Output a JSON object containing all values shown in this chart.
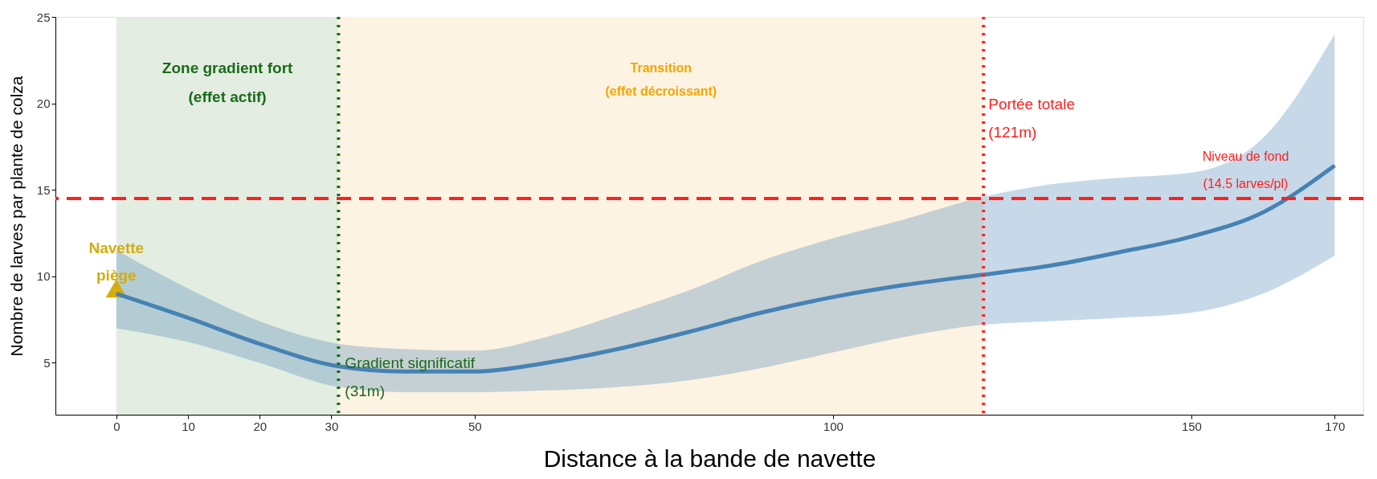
{
  "chart_data": {
    "type": "line",
    "xlabel": "Distance à la bande de navette",
    "ylabel": "Nombre de larves par plante de colza",
    "x": [
      0,
      10,
      20,
      31,
      40,
      50,
      60,
      70,
      80,
      90,
      100,
      110,
      121,
      130,
      140,
      150,
      160,
      170
    ],
    "series": [
      {
        "color": "#4682b4",
        "values": [
          9.0,
          7.6,
          6.1,
          4.8,
          4.5,
          4.5,
          5.0,
          5.8,
          6.8,
          7.9,
          8.8,
          9.5,
          10.1,
          10.6,
          11.4,
          12.3,
          13.7,
          16.4
        ],
        "lower": [
          7.0,
          6.2,
          5.0,
          3.6,
          3.3,
          3.3,
          3.4,
          3.6,
          4.0,
          4.7,
          5.6,
          6.5,
          7.2,
          7.4,
          7.6,
          7.9,
          9.0,
          11.2
        ],
        "upper": [
          11.5,
          9.3,
          7.4,
          6.1,
          5.8,
          5.7,
          6.5,
          7.8,
          9.2,
          10.9,
          12.2,
          13.3,
          14.6,
          15.3,
          15.7,
          16.0,
          18.0,
          24.0
        ]
      },
      {
        "type": "scatter",
        "name": "Navette\npiège",
        "color": "#d4ac0d",
        "marker": "triangle",
        "x": [
          0
        ],
        "values": [
          9.3
        ]
      }
    ],
    "xlim": [
      -8.5,
      174
    ],
    "ylim": [
      2,
      25
    ],
    "xticks": [
      0,
      10,
      20,
      30,
      50,
      100,
      150,
      170
    ],
    "yticks": [
      5,
      10,
      15,
      20,
      25
    ],
    "grid": false,
    "bands": [
      {
        "axis": "x",
        "from": 0,
        "to": 31,
        "label": "Zone gradient fort\n(effet actif)",
        "color": "#e3ede1"
      },
      {
        "axis": "x",
        "from": 31,
        "to": 121,
        "label": "Transition\n(effet décroissant)",
        "color": "#fdf3e2"
      }
    ],
    "ref_lines": [
      {
        "axis": "x",
        "value": 31,
        "label": "Gradient significatif\n(31m)",
        "color": "#1a6b1a",
        "line_style": "dotted"
      },
      {
        "axis": "x",
        "value": 121,
        "label": "Portée totale\n(121m)",
        "color": "#ff2020",
        "line_style": "dotted"
      },
      {
        "axis": "y",
        "value": 14.5,
        "label": "Niveau de fond\n(14.5 larves/pl)",
        "color": "#ff2020",
        "line_style": "dashed"
      }
    ]
  }
}
